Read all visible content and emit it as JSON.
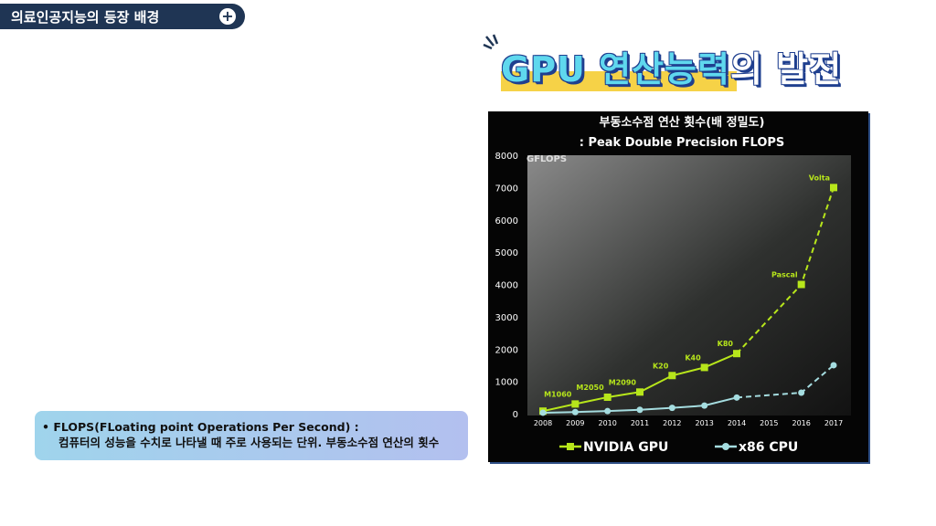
{
  "header": {
    "title": "의료인공지능의 등장 배경",
    "icon": "plus-circle-icon"
  },
  "headline": {
    "part1": "GPU 연산능력",
    "part2": "의 발전"
  },
  "note": {
    "line1": "• FLOPS(FLoating point Operations Per Second) :",
    "line2": "컴퓨터의 성능을 수치로 나타낼 때 주로 사용되는 단위. 부동소수점 연산의 횟수"
  },
  "chart_data": {
    "type": "line",
    "title": "부동소수점 연산 횟수(배 정밀도)",
    "subtitle": ": Peak Double Precision FLOPS",
    "ylabel": "GFLOPS",
    "ylim": [
      0,
      8000
    ],
    "yticks": [
      "0",
      "1000",
      "2000",
      "3000",
      "4000",
      "5000",
      "6000",
      "7000",
      "8000"
    ],
    "x_ticks": [
      "2008",
      "2009",
      "2010",
      "2011",
      "2012",
      "2013",
      "2014",
      "2015",
      "2016",
      "2017"
    ],
    "series": [
      {
        "name": "NVIDIA GPU",
        "color": "#b7e61b",
        "x": [
          2008,
          2009,
          2010,
          2011,
          2012,
          2013,
          2014,
          2016,
          2017
        ],
        "values": [
          80,
          300,
          510,
          670,
          1180,
          1430,
          1860,
          4000,
          7000
        ],
        "labels": [
          "",
          "M1060",
          "M2050",
          "M2090",
          "K20",
          "K40",
          "K80",
          "Pascal",
          "Volta"
        ]
      },
      {
        "name": "x86 CPU",
        "color": "#a5dde0",
        "x": [
          2008,
          2009,
          2010,
          2011,
          2012,
          2013,
          2014,
          2016,
          2017
        ],
        "values": [
          30,
          50,
          80,
          120,
          180,
          250,
          500,
          650,
          1500
        ],
        "labels": [
          "",
          "",
          "",
          "",
          "",
          "",
          "",
          "",
          ""
        ]
      }
    ],
    "legend": "bottom"
  }
}
